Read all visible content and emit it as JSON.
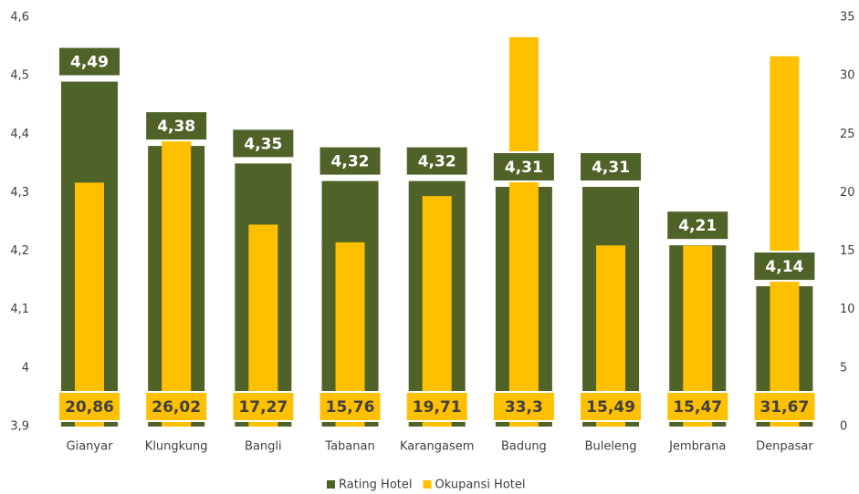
{
  "chart_data": {
    "type": "bar",
    "categories": [
      "Gianyar",
      "Klungkung",
      "Bangli",
      "Tabanan",
      "Karangasem",
      "Badung",
      "Buleleng",
      "Jembrana",
      "Denpasar"
    ],
    "series": [
      {
        "name": "Rating Hotel",
        "color": "#4f6228",
        "values": [
          4.49,
          4.38,
          4.35,
          4.32,
          4.32,
          4.31,
          4.31,
          4.21,
          4.14
        ],
        "value_labels": [
          "4,49",
          "4,38",
          "4,35",
          "4,32",
          "4,32",
          "4,31",
          "4,31",
          "4,21",
          "4,14"
        ]
      },
      {
        "name": "Okupansi Hotel",
        "color": "#ffc000",
        "axis": "y2",
        "values": [
          20.86,
          26.02,
          17.27,
          15.76,
          19.71,
          33.3,
          15.49,
          15.47,
          31.67
        ],
        "value_labels": [
          "20,86",
          "26,02",
          "17,27",
          "15,76",
          "19,71",
          "33,3",
          "15,49",
          "15,47",
          "31,67"
        ]
      }
    ],
    "ylim": [
      3.9,
      4.6
    ],
    "yticks": [
      {
        "value": 3.9,
        "label": "3,9"
      },
      4,
      {
        "value": 4.1,
        "label": "4,1"
      },
      {
        "value": 4.2,
        "label": "4,2"
      },
      {
        "value": 4.3,
        "label": "4,3"
      },
      {
        "value": 4.4,
        "label": "4,4"
      },
      {
        "value": 4.5,
        "label": "4,5"
      },
      {
        "value": 4.6,
        "label": "4,6"
      }
    ],
    "y2lim": [
      0,
      35
    ],
    "y2ticks": [
      0,
      5,
      10,
      15,
      20,
      25,
      30,
      35
    ],
    "grid": false,
    "legend": "bottom"
  }
}
